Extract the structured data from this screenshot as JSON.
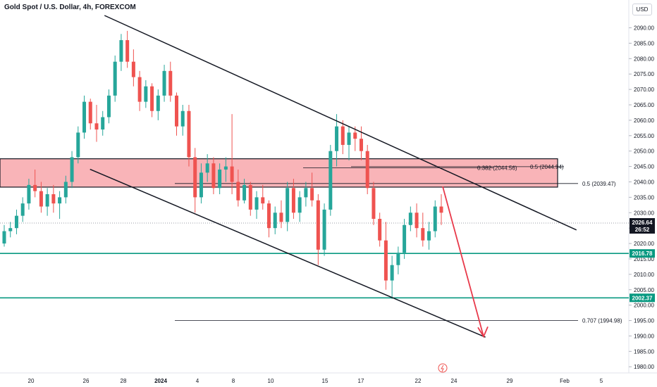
{
  "header": {
    "title": "Gold Spot / U.S. Dollar, 4h, FOREXCOM",
    "currency_button": "USD"
  },
  "colors": {
    "up": "#26a69a",
    "down": "#ef5350",
    "zone_fill": "#f7a1a6",
    "zone_stroke": "#131722",
    "level_line": "#089981",
    "arrow": "#e8394a",
    "trendline": "#131722"
  },
  "chart_data": {
    "type": "candlestick",
    "y_axis": {
      "min": 1978,
      "max": 2094,
      "ticks": [
        "2090.00",
        "2085.00",
        "2080.00",
        "2075.00",
        "2070.00",
        "2065.00",
        "2060.00",
        "2055.00",
        "2050.00",
        "2045.00",
        "2040.00",
        "2035.00",
        "2030.00",
        "2025.00",
        "2020.00",
        "2015.00",
        "2010.00",
        "2005.00",
        "2000.00",
        "1995.00",
        "1990.00",
        "1985.00",
        "1980.00"
      ]
    },
    "x_axis": {
      "labels": [
        "20",
        "26",
        "28",
        "2024",
        "4",
        "8",
        "10",
        "15",
        "17",
        "22",
        "24",
        "29",
        "Feb",
        "5"
      ]
    },
    "resistance_zone": {
      "top": 2047.5,
      "bottom": 2038.3
    },
    "horizontal_levels": [
      {
        "value": 2016.78,
        "label": "2016.78"
      },
      {
        "value": 2002.37,
        "label": "2002.37"
      }
    ],
    "current_price": {
      "value": 2026.64,
      "label": "2026.64",
      "countdown": "26:52"
    },
    "fib_labels": [
      {
        "value": 2044.94,
        "text": "0.5 (2044.94)"
      },
      {
        "value": 2044.56,
        "text": "0.382 (2044.56)"
      },
      {
        "value": 2039.47,
        "text": "0.5 (2039.47)"
      },
      {
        "value": 1994.98,
        "text": "0.707 (1994.98)"
      }
    ],
    "channel": {
      "upper": [
        {
          "bar": 0.22,
          "price": 2094.0
        },
        {
          "bar": 1.03,
          "price": 2024.4
        }
      ],
      "lower": [
        {
          "bar": 0.16,
          "price": 2044.1
        },
        {
          "bar": 0.8,
          "price": 1989.6
        }
      ]
    },
    "projection_arrow": [
      {
        "bar": 0.74,
        "price": 2038.5
      },
      {
        "bar": 0.8,
        "price": 1989.8
      }
    ],
    "candles": [
      [
        2020,
        2026,
        2019,
        2024
      ],
      [
        2024,
        2027,
        2022,
        2025
      ],
      [
        2025,
        2031,
        2023,
        2029
      ],
      [
        2029,
        2035,
        2027,
        2033
      ],
      [
        2033,
        2041,
        2031,
        2039
      ],
      [
        2039,
        2044,
        2035,
        2037
      ],
      [
        2037,
        2040,
        2030,
        2032
      ],
      [
        2032,
        2038,
        2029,
        2036
      ],
      [
        2036,
        2039,
        2030,
        2033
      ],
      [
        2033,
        2037,
        2028,
        2035
      ],
      [
        2035,
        2042,
        2033,
        2040
      ],
      [
        2040,
        2050,
        2038,
        2048
      ],
      [
        2048,
        2058,
        2046,
        2056
      ],
      [
        2056,
        2068,
        2054,
        2066
      ],
      [
        2066,
        2067,
        2057,
        2059
      ],
      [
        2059,
        2065,
        2053,
        2057
      ],
      [
        2057,
        2063,
        2055,
        2061
      ],
      [
        2061,
        2070,
        2059,
        2068
      ],
      [
        2068,
        2081,
        2066,
        2079
      ],
      [
        2079,
        2088,
        2076,
        2086
      ],
      [
        2086,
        2089,
        2077,
        2079
      ],
      [
        2079,
        2083,
        2071,
        2074
      ],
      [
        2074,
        2076,
        2063,
        2066
      ],
      [
        2066,
        2073,
        2064,
        2071
      ],
      [
        2071,
        2072,
        2061,
        2063
      ],
      [
        2063,
        2070,
        2060,
        2068
      ],
      [
        2068,
        2078,
        2066,
        2076
      ],
      [
        2076,
        2079,
        2066,
        2068
      ],
      [
        2068,
        2069,
        2055,
        2058
      ],
      [
        2058,
        2065,
        2055,
        2063
      ],
      [
        2063,
        2065,
        2045,
        2048
      ],
      [
        2048,
        2051,
        2030,
        2035
      ],
      [
        2035,
        2046,
        2033,
        2043
      ],
      [
        2043,
        2049,
        2040,
        2046
      ],
      [
        2046,
        2048,
        2036,
        2038
      ],
      [
        2038,
        2046,
        2036,
        2044
      ],
      [
        2044,
        2048,
        2040,
        2045
      ],
      [
        2045,
        2062,
        2036,
        2040
      ],
      [
        2040,
        2044,
        2032,
        2034
      ],
      [
        2034,
        2041,
        2033,
        2039
      ],
      [
        2039,
        2040,
        2029,
        2031
      ],
      [
        2031,
        2037,
        2028,
        2035
      ],
      [
        2035,
        2039,
        2031,
        2033
      ],
      [
        2033,
        2034,
        2022,
        2025
      ],
      [
        2025,
        2032,
        2023,
        2030
      ],
      [
        2030,
        2034,
        2025,
        2027
      ],
      [
        2027,
        2040,
        2024,
        2038
      ],
      [
        2038,
        2041,
        2028,
        2030
      ],
      [
        2030,
        2037,
        2027,
        2035
      ],
      [
        2035,
        2040,
        2032,
        2038
      ],
      [
        2038,
        2043,
        2032,
        2034
      ],
      [
        2034,
        2036,
        2013,
        2018
      ],
      [
        2018,
        2033,
        2016,
        2031
      ],
      [
        2031,
        2052,
        2029,
        2050
      ],
      [
        2050,
        2062,
        2045,
        2058
      ],
      [
        2058,
        2060,
        2049,
        2052
      ],
      [
        2052,
        2058,
        2047,
        2056
      ],
      [
        2056,
        2058,
        2050,
        2054
      ],
      [
        2054,
        2058,
        2047,
        2050
      ],
      [
        2050,
        2052,
        2036,
        2038
      ],
      [
        2038,
        2040,
        2026,
        2028
      ],
      [
        2028,
        2030,
        2019,
        2021
      ],
      [
        2021,
        2027,
        2005,
        2008
      ],
      [
        2008,
        2016,
        2002,
        2013
      ],
      [
        2013,
        2019,
        2010,
        2017
      ],
      [
        2017,
        2028,
        2015,
        2026
      ],
      [
        2026,
        2032,
        2024,
        2030
      ],
      [
        2030,
        2033,
        2022,
        2025
      ],
      [
        2025,
        2030,
        2019,
        2021
      ],
      [
        2021,
        2027,
        2018,
        2024
      ],
      [
        2024,
        2034,
        2022,
        2032
      ],
      [
        2032,
        2036,
        2026,
        2030
      ]
    ]
  }
}
